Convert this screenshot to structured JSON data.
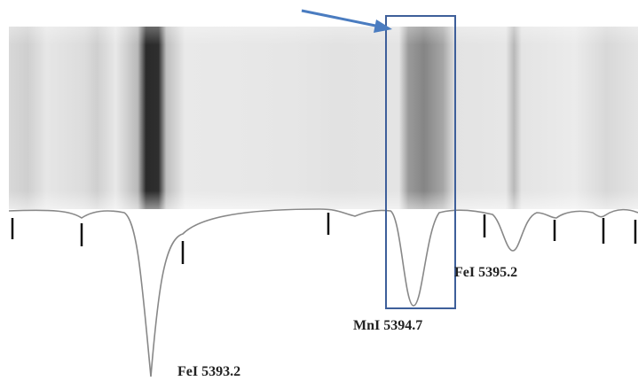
{
  "labels": [
    "FeI 5393.2",
    "MnI 5394.7",
    "FeI 5395.2"
  ]
}
